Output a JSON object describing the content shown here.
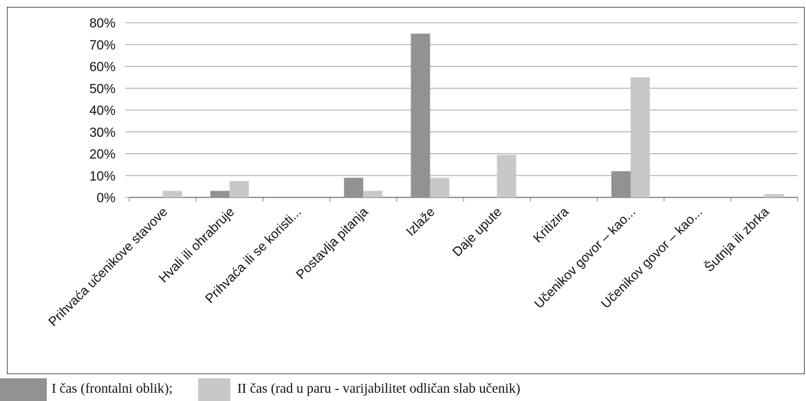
{
  "colors": {
    "series1": "#929292",
    "series2": "#c8c8c8",
    "grid": "#9a9a9a",
    "axis": "#777777"
  },
  "chart_data": {
    "type": "bar",
    "categories": [
      "Prihvaća učenikove stavove",
      "Hvali ili ohrabruje",
      "Prihvaća ili se koristi...",
      "Postavlja pitanja",
      "Izlaže",
      "Daje upute",
      "Kritizira",
      "Učenikov govor – kao...",
      "Učenikov govor – kao...",
      "Šutnja ili zbrka"
    ],
    "series": [
      {
        "name": "I čas (frontalni oblik);",
        "values": [
          0,
          3,
          0,
          9,
          75,
          0,
          0,
          12,
          0,
          0
        ]
      },
      {
        "name": "II čas (rad u paru - varijabilitet odličan slab učenik)",
        "values": [
          3,
          7.5,
          0,
          3,
          9,
          19.5,
          0,
          55,
          0,
          1.5
        ]
      }
    ],
    "y_ticks": [
      "0%",
      "10%",
      "20%",
      "30%",
      "40%",
      "50%",
      "60%",
      "70%",
      "80%"
    ],
    "ylim": [
      0,
      80
    ],
    "grid": true,
    "legend_position": "bottom"
  }
}
